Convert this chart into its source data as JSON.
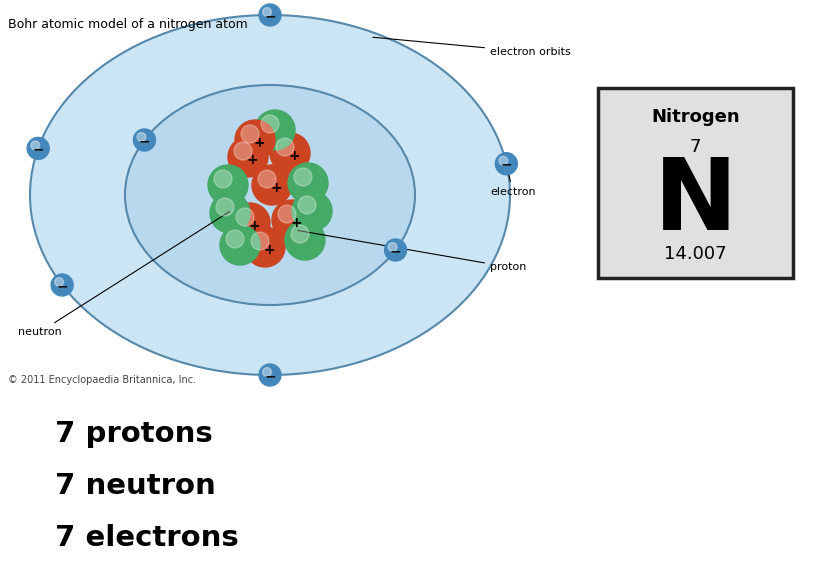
{
  "title": "Bohr atomic model of a nitrogen atom",
  "background_color": "#ffffff",
  "orbit_color": "#5588aa",
  "outer_fill": "#cce5f5",
  "inner_fill": "#b8d8ee",
  "proton_color": "#cc4422",
  "neutron_color": "#44aa66",
  "electron_color": "#4488bb",
  "element_box": {
    "name": "Nitrogen",
    "number": "7",
    "symbol": "N",
    "mass": "14.007",
    "bg": "#e0e0e0",
    "border": "#222222"
  },
  "bottom_text": [
    "7 protons",
    "7 neutron",
    "7 electrons"
  ],
  "copyright": "© 2011 Encyclopaedia Britannica, Inc."
}
